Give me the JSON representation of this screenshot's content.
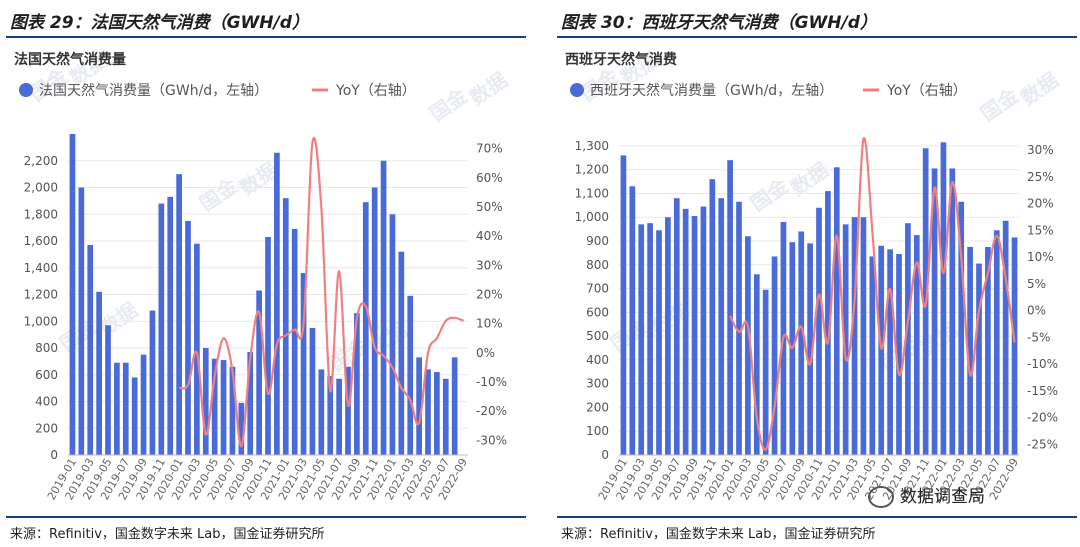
{
  "colors": {
    "bar": "#4a6ad8",
    "line": "#f08080",
    "rule": "#1c3f7c",
    "grid": "#e9e9e9"
  },
  "months": [
    "2019-01",
    "2019-02",
    "2019-03",
    "2019-04",
    "2019-05",
    "2019-06",
    "2019-07",
    "2019-08",
    "2019-09",
    "2019-10",
    "2019-11",
    "2019-12",
    "2020-01",
    "2020-02",
    "2020-03",
    "2020-04",
    "2020-05",
    "2020-06",
    "2020-07",
    "2020-08",
    "2020-09",
    "2020-10",
    "2020-11",
    "2020-12",
    "2021-01",
    "2021-02",
    "2021-03",
    "2021-04",
    "2021-05",
    "2021-06",
    "2021-07",
    "2021-08",
    "2021-09",
    "2021-10",
    "2021-11",
    "2021-12",
    "2022-01",
    "2022-02",
    "2022-03",
    "2022-04",
    "2022-05",
    "2022-06",
    "2022-07",
    "2022-08",
    "2022-09"
  ],
  "watermark": {
    "line1": "国金",
    "line2": "数据"
  },
  "wechat": {
    "label": "数据调查局"
  },
  "panels": [
    {
      "fig_title": "图表 29：法国天然气消费（GWH/d）",
      "source": "来源：Refinitiv，国金数字未来 Lab，国金证券研究所",
      "chart_data": {
        "type": "bar",
        "title": "法国天然气消费量",
        "legend": [
          "法国天然气消费量（GWh/d，左轴）",
          "YoY（右轴）"
        ],
        "ylim": [
          0,
          2400
        ],
        "yticks": [
          0,
          200,
          400,
          600,
          800,
          1000,
          1200,
          1400,
          1600,
          1800,
          2000,
          2200
        ],
        "yticklabels": [
          "0",
          "200",
          "400",
          "600",
          "800",
          "1,000",
          "1,200",
          "1,400",
          "1,600",
          "1,800",
          "2,000",
          "2,200"
        ],
        "y2lim": [
          -35,
          75
        ],
        "y2ticks": [
          -30,
          -20,
          -10,
          0,
          10,
          20,
          30,
          40,
          50,
          60,
          70
        ],
        "y2ticklabels": [
          "-30%",
          "-20%",
          "-10%",
          "0%",
          "10%",
          "20%",
          "30%",
          "40%",
          "50%",
          "60%",
          "70%"
        ],
        "xticklabels": [
          "2019-01",
          "2019-03",
          "2019-05",
          "2019-07",
          "2019-09",
          "2019-11",
          "2020-01",
          "2020-03",
          "2020-05",
          "2020-07",
          "2020-09",
          "2020-11",
          "2021-01",
          "2021-03",
          "2021-05",
          "2021-07",
          "2021-09",
          "2021-11",
          "2022-01",
          "2022-03",
          "2022-05",
          "2022-07",
          "2022-09"
        ],
        "bar_values": [
          2400,
          2000,
          1570,
          1220,
          970,
          690,
          690,
          580,
          750,
          1080,
          1880,
          1930,
          2100,
          1750,
          1580,
          800,
          720,
          710,
          660,
          390,
          770,
          1230,
          1630,
          2260,
          1920,
          1690,
          1360,
          950,
          640,
          590,
          570,
          660,
          1060,
          1890,
          2000,
          2200,
          1800,
          1520,
          1190,
          730,
          640,
          620,
          570,
          730,
          null
        ],
        "yoy_values": [
          null,
          null,
          null,
          null,
          null,
          null,
          null,
          null,
          null,
          null,
          null,
          null,
          -12,
          -11,
          0,
          -28,
          -8,
          5,
          -6,
          -32,
          -2,
          14,
          -14,
          3,
          6,
          8,
          10,
          72,
          50,
          -13,
          28,
          -18,
          12,
          16,
          2,
          -1,
          -5,
          -12,
          -16,
          -24,
          0,
          5,
          11,
          12,
          11
        ]
      }
    },
    {
      "fig_title": "图表 30：西班牙天然气消费（GWH/d）",
      "source": "来源：Refinitiv，国金数字未来 Lab，国金证券研究所",
      "chart_data": {
        "type": "bar",
        "title": "西班牙天然气消费",
        "legend": [
          "西班牙天然气消费量（GWh/d，左轴）",
          "YoY（右轴）"
        ],
        "ylim": [
          0,
          1350
        ],
        "yticks": [
          0,
          100,
          200,
          300,
          400,
          500,
          600,
          700,
          800,
          900,
          1000,
          1100,
          1200,
          1300
        ],
        "yticklabels": [
          "0",
          "100",
          "200",
          "300",
          "400",
          "500",
          "600",
          "700",
          "800",
          "900",
          "1,000",
          "1,100",
          "1,200",
          "1,300"
        ],
        "y2lim": [
          -27,
          33
        ],
        "y2ticks": [
          -25,
          -20,
          -15,
          -10,
          -5,
          0,
          5,
          10,
          15,
          20,
          25,
          30
        ],
        "y2ticklabels": [
          "-25%",
          "-20%",
          "-15%",
          "-10%",
          "-5%",
          "0%",
          "5%",
          "10%",
          "15%",
          "20%",
          "25%",
          "30%"
        ],
        "xticklabels": [
          "2019-01",
          "2019-03",
          "2019-05",
          "2019-07",
          "2019-09",
          "2019-11",
          "2020-01",
          "2020-03",
          "2020-05",
          "2020-07",
          "2020-09",
          "2020-11",
          "2021-01",
          "2021-03",
          "2021-05",
          "2021-07",
          "2021-09",
          "2021-11",
          "2022-01",
          "2022-03",
          "2022-05",
          "2022-07",
          "2022-09"
        ],
        "bar_values": [
          1260,
          1130,
          970,
          975,
          945,
          1000,
          1080,
          1035,
          1005,
          1045,
          1160,
          1080,
          1240,
          1065,
          920,
          760,
          695,
          835,
          980,
          895,
          940,
          890,
          1040,
          1110,
          1210,
          970,
          1000,
          1000,
          835,
          880,
          865,
          845,
          975,
          925,
          1290,
          1205,
          1315,
          1205,
          1065,
          875,
          805,
          875,
          945,
          985,
          915
        ],
        "yoy_values": [
          null,
          null,
          null,
          null,
          null,
          null,
          null,
          null,
          null,
          null,
          null,
          null,
          -1,
          -4,
          -3,
          -20,
          -26,
          -18,
          -5,
          -7,
          -3,
          -10,
          3,
          -6,
          14,
          -9,
          2,
          32,
          15,
          -7,
          4,
          -12,
          -2,
          9,
          1,
          23,
          7,
          24,
          10,
          -12,
          0,
          7,
          14,
          6,
          -6
        ]
      }
    }
  ]
}
